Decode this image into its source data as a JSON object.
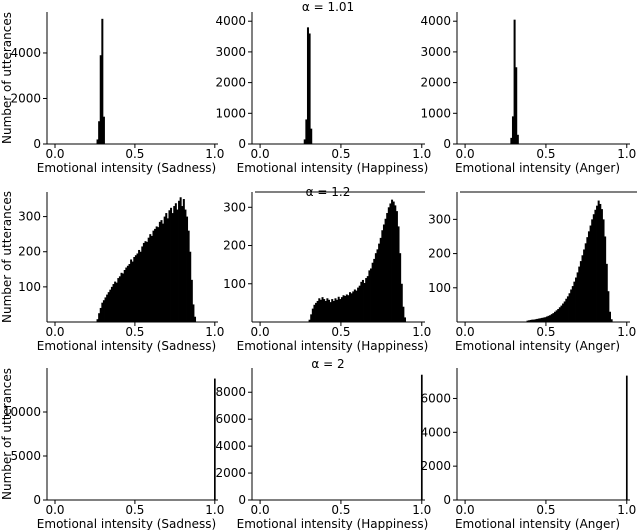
{
  "colors": {
    "bar": "#000000",
    "axis": "#000000",
    "background": "#ffffff"
  },
  "chart_data": [
    {
      "type": "bar",
      "group": 0,
      "group_title": "α = 1.01",
      "xlabel": "Emotional intensity (Sadness)",
      "ylabel": "Number of utterances",
      "xlim": [
        -0.05,
        1.02
      ],
      "ylim": [
        0,
        5800
      ],
      "xticks": [
        0.0,
        0.5,
        1.0
      ],
      "xticklabels": [
        "0.0",
        "0.5",
        "1.0"
      ],
      "yticks": [
        0,
        2000,
        4000
      ],
      "yticklabels": [
        "0",
        "2000",
        "4000"
      ],
      "bin_width": 0.01,
      "bins": [
        [
          0.26,
          200
        ],
        [
          0.27,
          1000
        ],
        [
          0.28,
          3900
        ],
        [
          0.29,
          5500
        ],
        [
          0.3,
          1200
        ]
      ]
    },
    {
      "type": "bar",
      "group": 0,
      "group_title": "α = 1.01",
      "xlabel": "Emotional intensity (Happiness)",
      "ylabel": "",
      "xlim": [
        -0.05,
        1.02
      ],
      "ylim": [
        0,
        4300
      ],
      "xticks": [
        0.0,
        0.5,
        1.0
      ],
      "xticklabels": [
        "0.0",
        "0.5",
        "1.0"
      ],
      "yticks": [
        0,
        1000,
        2000,
        3000,
        4000
      ],
      "yticklabels": [
        "0",
        "1000",
        "2000",
        "3000",
        "4000"
      ],
      "bin_width": 0.01,
      "bins": [
        [
          0.27,
          150
        ],
        [
          0.28,
          800
        ],
        [
          0.29,
          3800
        ],
        [
          0.3,
          3600
        ],
        [
          0.31,
          500
        ]
      ]
    },
    {
      "type": "bar",
      "group": 0,
      "group_title": "α = 1.01",
      "xlabel": "Emotional intensity (Anger)",
      "ylabel": "",
      "xlim": [
        -0.05,
        1.02
      ],
      "ylim": [
        0,
        4300
      ],
      "xticks": [
        0.0,
        0.5,
        1.0
      ],
      "xticklabels": [
        "0.0",
        "0.5",
        "1.0"
      ],
      "yticks": [
        0,
        1000,
        2000,
        3000,
        4000
      ],
      "yticklabels": [
        "0",
        "1000",
        "2000",
        "3000",
        "4000"
      ],
      "bin_width": 0.01,
      "bins": [
        [
          0.28,
          200
        ],
        [
          0.29,
          900
        ],
        [
          0.3,
          4050
        ],
        [
          0.31,
          2500
        ],
        [
          0.32,
          300
        ]
      ]
    },
    {
      "type": "bar",
      "group": 1,
      "group_title": "α = 1.2",
      "xlabel": "Emotional intensity (Sadness)",
      "ylabel": "Number of utterances",
      "xlim": [
        -0.05,
        1.02
      ],
      "ylim": [
        0,
        370
      ],
      "xticks": [
        0.0,
        0.5,
        1.0
      ],
      "xticklabels": [
        "0.0",
        "0.5",
        "1.0"
      ],
      "yticks": [
        100,
        200,
        300
      ],
      "yticklabels": [
        "100",
        "200",
        "300"
      ],
      "bin_width": 0.01,
      "bins": [
        [
          0.26,
          8
        ],
        [
          0.27,
          25
        ],
        [
          0.28,
          40
        ],
        [
          0.29,
          55
        ],
        [
          0.3,
          62
        ],
        [
          0.31,
          70
        ],
        [
          0.32,
          78
        ],
        [
          0.33,
          85
        ],
        [
          0.34,
          92
        ],
        [
          0.35,
          100
        ],
        [
          0.36,
          108
        ],
        [
          0.37,
          115
        ],
        [
          0.38,
          112
        ],
        [
          0.39,
          125
        ],
        [
          0.4,
          130
        ],
        [
          0.41,
          140
        ],
        [
          0.42,
          138
        ],
        [
          0.43,
          148
        ],
        [
          0.44,
          155
        ],
        [
          0.45,
          160
        ],
        [
          0.46,
          165
        ],
        [
          0.47,
          178
        ],
        [
          0.48,
          172
        ],
        [
          0.49,
          185
        ],
        [
          0.5,
          190
        ],
        [
          0.51,
          195
        ],
        [
          0.52,
          205
        ],
        [
          0.53,
          200
        ],
        [
          0.54,
          215
        ],
        [
          0.55,
          225
        ],
        [
          0.56,
          230
        ],
        [
          0.57,
          228
        ],
        [
          0.58,
          240
        ],
        [
          0.59,
          250
        ],
        [
          0.6,
          245
        ],
        [
          0.61,
          260
        ],
        [
          0.62,
          265
        ],
        [
          0.63,
          272
        ],
        [
          0.64,
          270
        ],
        [
          0.65,
          285
        ],
        [
          0.66,
          290
        ],
        [
          0.67,
          280
        ],
        [
          0.68,
          300
        ],
        [
          0.69,
          310
        ],
        [
          0.7,
          295
        ],
        [
          0.71,
          318
        ],
        [
          0.72,
          325
        ],
        [
          0.73,
          310
        ],
        [
          0.74,
          330
        ],
        [
          0.75,
          338
        ],
        [
          0.76,
          320
        ],
        [
          0.77,
          345
        ],
        [
          0.78,
          355
        ],
        [
          0.79,
          330
        ],
        [
          0.8,
          350
        ],
        [
          0.81,
          320
        ],
        [
          0.82,
          300
        ],
        [
          0.83,
          260
        ],
        [
          0.84,
          200
        ],
        [
          0.85,
          120
        ],
        [
          0.86,
          50
        ],
        [
          0.87,
          15
        ]
      ]
    },
    {
      "type": "bar",
      "group": 1,
      "group_title": "α = 1.2",
      "xlabel": "Emotional intensity (Happiness)",
      "ylabel": "",
      "xlim": [
        -0.05,
        1.02
      ],
      "ylim": [
        0,
        340
      ],
      "xticks": [
        0.0,
        0.5,
        1.0
      ],
      "xticklabels": [
        "0.0",
        "0.5",
        "1.0"
      ],
      "yticks": [
        100,
        200,
        300
      ],
      "yticklabels": [
        "100",
        "200",
        "300"
      ],
      "bin_width": 0.01,
      "bins": [
        [
          0.3,
          6
        ],
        [
          0.31,
          20
        ],
        [
          0.32,
          35
        ],
        [
          0.33,
          45
        ],
        [
          0.34,
          50
        ],
        [
          0.35,
          55
        ],
        [
          0.36,
          62
        ],
        [
          0.37,
          58
        ],
        [
          0.38,
          65
        ],
        [
          0.39,
          60
        ],
        [
          0.4,
          55
        ],
        [
          0.41,
          62
        ],
        [
          0.42,
          58
        ],
        [
          0.43,
          52
        ],
        [
          0.44,
          60
        ],
        [
          0.45,
          55
        ],
        [
          0.46,
          62
        ],
        [
          0.47,
          58
        ],
        [
          0.48,
          66
        ],
        [
          0.49,
          60
        ],
        [
          0.5,
          65
        ],
        [
          0.51,
          70
        ],
        [
          0.52,
          68
        ],
        [
          0.53,
          72
        ],
        [
          0.54,
          70
        ],
        [
          0.55,
          78
        ],
        [
          0.56,
          75
        ],
        [
          0.57,
          80
        ],
        [
          0.58,
          85
        ],
        [
          0.59,
          82
        ],
        [
          0.6,
          90
        ],
        [
          0.61,
          95
        ],
        [
          0.62,
          105
        ],
        [
          0.63,
          110
        ],
        [
          0.64,
          102
        ],
        [
          0.65,
          115
        ],
        [
          0.66,
          120
        ],
        [
          0.67,
          135
        ],
        [
          0.68,
          140
        ],
        [
          0.69,
          155
        ],
        [
          0.7,
          165
        ],
        [
          0.71,
          180
        ],
        [
          0.72,
          190
        ],
        [
          0.73,
          205
        ],
        [
          0.74,
          220
        ],
        [
          0.75,
          240
        ],
        [
          0.76,
          255
        ],
        [
          0.77,
          270
        ],
        [
          0.78,
          285
        ],
        [
          0.79,
          300
        ],
        [
          0.8,
          310
        ],
        [
          0.81,
          320
        ],
        [
          0.82,
          315
        ],
        [
          0.83,
          305
        ],
        [
          0.84,
          290
        ],
        [
          0.85,
          250
        ],
        [
          0.86,
          180
        ],
        [
          0.87,
          100
        ],
        [
          0.88,
          40
        ],
        [
          0.89,
          12
        ]
      ]
    },
    {
      "type": "bar",
      "group": 1,
      "group_title": "α = 1.2",
      "xlabel": "Emotional intensity (Anger)",
      "ylabel": "",
      "xlim": [
        -0.05,
        1.02
      ],
      "ylim": [
        0,
        380
      ],
      "xticks": [
        0.0,
        0.5,
        1.0
      ],
      "xticklabels": [
        "0.0",
        "0.5",
        "1.0"
      ],
      "yticks": [
        100,
        200,
        300
      ],
      "yticklabels": [
        "100",
        "200",
        "300"
      ],
      "bin_width": 0.01,
      "bins": [
        [
          0.38,
          4
        ],
        [
          0.39,
          5
        ],
        [
          0.4,
          6
        ],
        [
          0.41,
          7
        ],
        [
          0.42,
          7
        ],
        [
          0.43,
          8
        ],
        [
          0.44,
          9
        ],
        [
          0.45,
          10
        ],
        [
          0.46,
          11
        ],
        [
          0.47,
          12
        ],
        [
          0.48,
          13
        ],
        [
          0.49,
          14
        ],
        [
          0.5,
          16
        ],
        [
          0.51,
          18
        ],
        [
          0.52,
          20
        ],
        [
          0.53,
          23
        ],
        [
          0.54,
          26
        ],
        [
          0.55,
          30
        ],
        [
          0.56,
          34
        ],
        [
          0.57,
          38
        ],
        [
          0.58,
          43
        ],
        [
          0.59,
          48
        ],
        [
          0.6,
          54
        ],
        [
          0.61,
          60
        ],
        [
          0.62,
          68
        ],
        [
          0.63,
          75
        ],
        [
          0.64,
          84
        ],
        [
          0.65,
          95
        ],
        [
          0.66,
          105
        ],
        [
          0.67,
          118
        ],
        [
          0.68,
          130
        ],
        [
          0.69,
          145
        ],
        [
          0.7,
          162
        ],
        [
          0.71,
          178
        ],
        [
          0.72,
          195
        ],
        [
          0.73,
          212
        ],
        [
          0.74,
          230
        ],
        [
          0.75,
          248
        ],
        [
          0.76,
          265
        ],
        [
          0.77,
          282
        ],
        [
          0.78,
          300
        ],
        [
          0.79,
          315
        ],
        [
          0.8,
          328
        ],
        [
          0.81,
          340
        ],
        [
          0.82,
          355
        ],
        [
          0.83,
          345
        ],
        [
          0.84,
          330
        ],
        [
          0.85,
          300
        ],
        [
          0.86,
          250
        ],
        [
          0.87,
          170
        ],
        [
          0.88,
          90
        ],
        [
          0.89,
          30
        ],
        [
          0.9,
          8
        ]
      ]
    },
    {
      "type": "bar",
      "group": 2,
      "group_title": "α = 2",
      "xlabel": "Emotional intensity (Sadness)",
      "ylabel": "Number of utterances",
      "xlim": [
        -0.05,
        1.02
      ],
      "ylim": [
        0,
        15000
      ],
      "xticks": [
        0.0,
        0.5,
        1.0
      ],
      "xticklabels": [
        "0.0",
        "0.5",
        "1.0"
      ],
      "yticks": [
        0,
        5000,
        10000
      ],
      "yticklabels": [
        "0",
        "5000",
        "10000"
      ],
      "bin_width": 0.008,
      "bins": [
        [
          0.995,
          13800
        ]
      ]
    },
    {
      "type": "bar",
      "group": 2,
      "group_title": "α = 2",
      "xlabel": "Emotional intensity (Happiness)",
      "ylabel": "",
      "xlim": [
        -0.05,
        1.02
      ],
      "ylim": [
        0,
        9800
      ],
      "xticks": [
        0.0,
        0.5,
        1.0
      ],
      "xticklabels": [
        "0.0",
        "0.5",
        "1.0"
      ],
      "yticks": [
        0,
        2000,
        4000,
        6000,
        8000
      ],
      "yticklabels": [
        "0",
        "2000",
        "4000",
        "6000",
        "8000"
      ],
      "bin_width": 0.008,
      "bins": [
        [
          0.995,
          9300
        ]
      ]
    },
    {
      "type": "bar",
      "group": 2,
      "group_title": "α = 2",
      "xlabel": "Emotional intensity (Anger)",
      "ylabel": "",
      "xlim": [
        -0.05,
        1.02
      ],
      "ylim": [
        0,
        7800
      ],
      "xticks": [
        0.0,
        0.5,
        1.0
      ],
      "xticklabels": [
        "0.0",
        "0.5",
        "1.0"
      ],
      "yticks": [
        0,
        2000,
        4000,
        6000
      ],
      "yticklabels": [
        "0",
        "2000",
        "4000",
        "6000"
      ],
      "bin_width": 0.008,
      "bins": [
        [
          0.995,
          7350
        ]
      ]
    }
  ]
}
